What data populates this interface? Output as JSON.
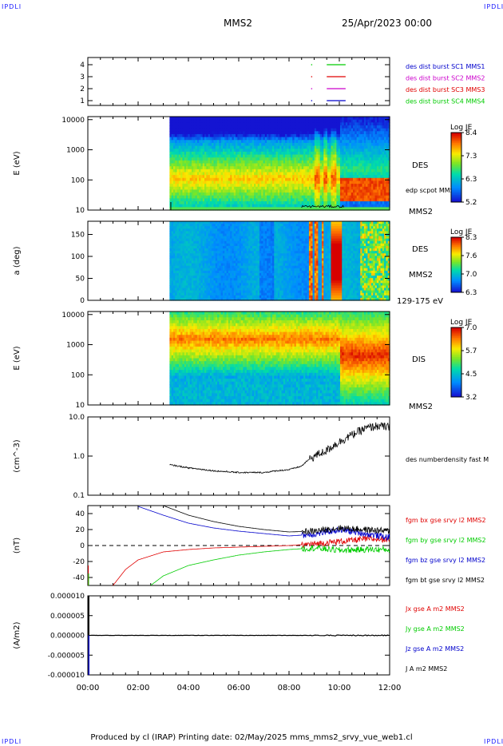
{
  "corner_label": "IPDLI",
  "header": {
    "spacecraft": "MMS2",
    "date": "25/Apr/2023 00:00"
  },
  "footer": {
    "text": "Produced by cl (IRAP)   Printing date: 02/May/2025   mms_mms2_srvy_vue_web1.cl"
  },
  "time_axis": {
    "ticks": [
      "00:00",
      "02:00",
      "04:00",
      "06:00",
      "08:00",
      "10:00",
      "12:00"
    ],
    "range_hours": [
      0,
      12
    ]
  },
  "colors": {
    "red": "#e00000",
    "green": "#00cc00",
    "blue": "#0000cc",
    "magenta": "#cc00cc",
    "black": "#000000"
  },
  "chart_data": [
    {
      "type": "line",
      "panel": "burst",
      "yticks": [
        "4",
        "3",
        "2",
        "1"
      ],
      "legend": [
        {
          "name": "des dist burst SC1 MMS1",
          "color": "#0000cc"
        },
        {
          "name": "des dist burst SC2 MMS2",
          "color": "#cc00cc"
        },
        {
          "name": "des dist burst SC3 MMS3",
          "color": "#e00000"
        },
        {
          "name": "des dist burst SC4 MMS4",
          "color": "#00cc00"
        }
      ],
      "segments": [
        {
          "level": 4,
          "x": [
            9.5,
            10.25
          ],
          "color": "#00cc00"
        },
        {
          "level": 3,
          "x": [
            9.5,
            10.25
          ],
          "color": "#e00000"
        },
        {
          "level": 2,
          "x": [
            9.5,
            10.25
          ],
          "color": "#cc00cc"
        },
        {
          "level": 1,
          "x": [
            9.5,
            10.25
          ],
          "color": "#0000cc"
        }
      ]
    },
    {
      "type": "heatmap",
      "panel": "des_energy",
      "ylabel": "E (eV)",
      "yscale": "log",
      "yticks": [
        "10000",
        "1000",
        "100",
        "10"
      ],
      "side_label": "DES",
      "overlay_label": "edp scpot MMS2",
      "bottom_label": "MMS2",
      "colorbar": {
        "title": "Log JE",
        "ticks": [
          "8.4",
          "7.3",
          "6.3",
          "5.2"
        ]
      },
      "data_start_hour": 3.25
    },
    {
      "type": "heatmap",
      "panel": "des_pitch",
      "ylabel": "a (deg)",
      "yticks": [
        "150",
        "100",
        "50",
        "0"
      ],
      "side_label": "DES",
      "side_label2": "MMS2",
      "bottom_label": "129-175 eV",
      "colorbar": {
        "title": "Log JE",
        "ticks": [
          "8.3",
          "7.6",
          "7.0",
          "6.3"
        ]
      },
      "data_start_hour": 3.25
    },
    {
      "type": "heatmap",
      "panel": "dis_energy",
      "ylabel": "E (eV)",
      "yscale": "log",
      "yticks": [
        "10000",
        "1000",
        "100",
        "10"
      ],
      "side_label": "DIS",
      "bottom_label": "MMS2",
      "colorbar": {
        "title": "Log JE",
        "ticks": [
          "7.0",
          "5.7",
          "4.5",
          "3.2"
        ]
      },
      "data_start_hour": 3.25
    },
    {
      "type": "line",
      "panel": "density",
      "ylabel": "(cm^-3)",
      "yscale": "log",
      "yticks": [
        "10.0",
        "1.0",
        "0.1"
      ],
      "legend": [
        {
          "name": "des numberdensity fast M",
          "color": "#000000"
        }
      ],
      "series": [
        {
          "x": [
            3.25,
            4,
            5,
            6,
            7,
            7.5,
            8,
            8.5,
            9,
            9.5,
            10,
            10.5,
            11,
            11.5,
            12
          ],
          "y": [
            0.6,
            0.5,
            0.42,
            0.38,
            0.38,
            0.42,
            0.45,
            0.55,
            1.0,
            1.4,
            2.3,
            3.5,
            5.0,
            6.0,
            5.5
          ]
        }
      ]
    },
    {
      "type": "line",
      "panel": "fgm",
      "ylabel": "(nT)",
      "yticks": [
        "40",
        "20",
        "0",
        "-20",
        "-40"
      ],
      "ylim": [
        -50,
        50
      ],
      "legend": [
        {
          "name": "fgm bx gse srvy l2 MMS2",
          "color": "#e00000"
        },
        {
          "name": "fgm by gse srvy l2 MMS2",
          "color": "#00cc00"
        },
        {
          "name": "fgm bz gse srvy l2 MMS2",
          "color": "#0000cc"
        },
        {
          "name": "fgm bt gse srvy l2 MMS2",
          "color": "#000000"
        }
      ],
      "series": [
        {
          "name": "fgm bx gse srvy l2 MMS2",
          "x": [
            1,
            1.5,
            2,
            3,
            4,
            5,
            6,
            7,
            8,
            9,
            10,
            11,
            12
          ],
          "y": [
            -50,
            -30,
            -18,
            -8,
            -5,
            -3,
            -2,
            -1,
            0,
            2,
            5,
            8,
            8
          ]
        },
        {
          "name": "fgm by gse srvy l2 MMS2",
          "x": [
            2.5,
            3,
            4,
            5,
            6,
            7,
            8,
            9,
            10,
            11,
            12
          ],
          "y": [
            -50,
            -38,
            -25,
            -18,
            -12,
            -8,
            -5,
            -3,
            -6,
            -5,
            -5
          ]
        },
        {
          "name": "fgm bz gse srvy l2 MMS2",
          "x": [
            2,
            3,
            4,
            5,
            6,
            7,
            8,
            9,
            10,
            11,
            12
          ],
          "y": [
            49,
            38,
            28,
            22,
            18,
            15,
            12,
            14,
            20,
            15,
            10
          ]
        },
        {
          "name": "fgm bt gse srvy l2 MMS2",
          "x": [
            3,
            4,
            5,
            6,
            7,
            8,
            9,
            10,
            11,
            12
          ],
          "y": [
            50,
            38,
            30,
            24,
            20,
            17,
            18,
            22,
            20,
            18
          ]
        }
      ]
    },
    {
      "type": "line",
      "panel": "current",
      "ylabel": "(A/m2)",
      "yticks": [
        "0.000010",
        "0.000005",
        "0.000000",
        "-0.000005",
        "-0.000010"
      ],
      "ylim": [
        -1e-05,
        1e-05
      ],
      "legend": [
        {
          "name": "Jx gse A m2 MMS2",
          "color": "#e00000"
        },
        {
          "name": "Jy gse A m2 MMS2",
          "color": "#00cc00"
        },
        {
          "name": "Jz gse A m2 MMS2",
          "color": "#0000cc"
        },
        {
          "name": "J A m2 MMS2",
          "color": "#000000"
        }
      ]
    }
  ]
}
